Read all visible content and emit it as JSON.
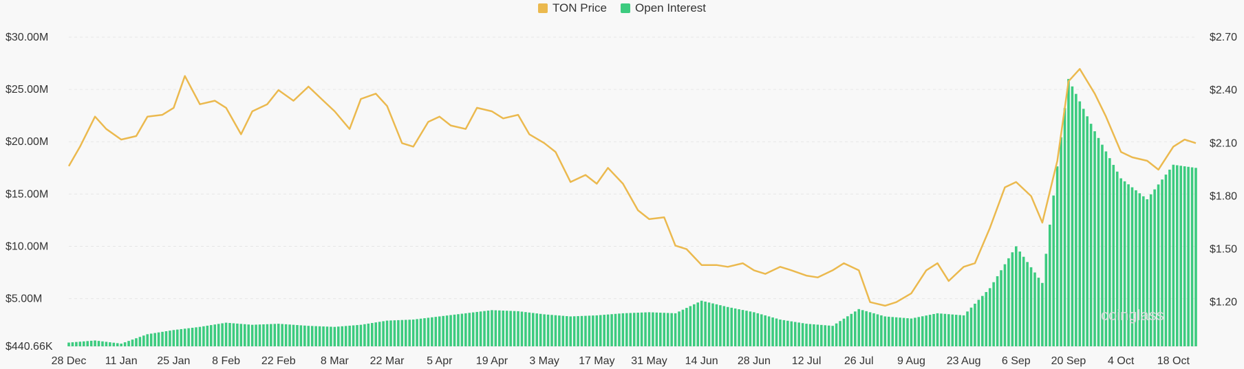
{
  "colors": {
    "price": "#EBB94E",
    "oi": "#3CCB7F",
    "grid": "#e6e6e6",
    "background": "#f8f8f8"
  },
  "watermark": "coinglass",
  "chart_data": {
    "type": "bar+line",
    "legend": [
      "TON Price",
      "Open Interest"
    ],
    "x_ticks": [
      "28 Dec",
      "11 Jan",
      "25 Jan",
      "8 Feb",
      "22 Feb",
      "8 Mar",
      "22 Mar",
      "5 Apr",
      "19 Apr",
      "3 May",
      "17 May",
      "31 May",
      "14 Jun",
      "28 Jun",
      "12 Jul",
      "26 Jul",
      "9 Aug",
      "23 Aug",
      "6 Sep",
      "20 Sep",
      "4 Oct",
      "18 Oct"
    ],
    "y_left_ticks": [
      "$440.66K",
      "$5.00M",
      "$10.00M",
      "$15.00M",
      "$20.00M",
      "$25.00M",
      "$30.00M"
    ],
    "y_right_ticks": [
      "$1.20",
      "$1.50",
      "$1.80",
      "$2.10",
      "$2.40",
      "$2.70"
    ],
    "y_left_range": [
      440660,
      30000000
    ],
    "y_right_range": [
      0.95,
      2.7
    ],
    "x_range": [
      "2023-12-28",
      "2024-10-24"
    ],
    "series": [
      {
        "name": "Open Interest",
        "kind": "bar",
        "axis": "left",
        "points": [
          [
            "2023-12-28",
            0.8
          ],
          [
            "2024-01-04",
            1.0
          ],
          [
            "2024-01-11",
            0.7
          ],
          [
            "2024-01-18",
            1.6
          ],
          [
            "2024-01-25",
            2.0
          ],
          [
            "2024-02-01",
            2.3
          ],
          [
            "2024-02-08",
            2.7
          ],
          [
            "2024-02-15",
            2.5
          ],
          [
            "2024-02-22",
            2.6
          ],
          [
            "2024-03-01",
            2.4
          ],
          [
            "2024-03-08",
            2.3
          ],
          [
            "2024-03-15",
            2.5
          ],
          [
            "2024-03-22",
            2.9
          ],
          [
            "2024-03-29",
            3.0
          ],
          [
            "2024-04-05",
            3.3
          ],
          [
            "2024-04-12",
            3.6
          ],
          [
            "2024-04-19",
            3.9
          ],
          [
            "2024-04-26",
            3.8
          ],
          [
            "2024-05-03",
            3.5
          ],
          [
            "2024-05-10",
            3.3
          ],
          [
            "2024-05-17",
            3.4
          ],
          [
            "2024-05-24",
            3.6
          ],
          [
            "2024-05-31",
            3.7
          ],
          [
            "2024-06-07",
            3.6
          ],
          [
            "2024-06-14",
            4.8
          ],
          [
            "2024-06-21",
            4.2
          ],
          [
            "2024-06-28",
            3.7
          ],
          [
            "2024-07-05",
            3.0
          ],
          [
            "2024-07-12",
            2.6
          ],
          [
            "2024-07-19",
            2.4
          ],
          [
            "2024-07-26",
            4.0
          ],
          [
            "2024-08-02",
            3.3
          ],
          [
            "2024-08-09",
            3.1
          ],
          [
            "2024-08-16",
            3.6
          ],
          [
            "2024-08-23",
            3.4
          ],
          [
            "2024-08-30",
            6.0
          ],
          [
            "2024-09-06",
            10.0
          ],
          [
            "2024-09-13",
            6.5
          ],
          [
            "2024-09-20",
            26.0
          ],
          [
            "2024-09-27",
            21.0
          ],
          [
            "2024-10-04",
            16.5
          ],
          [
            "2024-10-11",
            14.5
          ],
          [
            "2024-10-18",
            17.8
          ],
          [
            "2024-10-24",
            17.5
          ]
        ]
      },
      {
        "name": "TON Price",
        "kind": "line",
        "axis": "right",
        "points": [
          [
            "2023-12-28",
            1.97
          ],
          [
            "2023-12-31",
            2.08
          ],
          [
            "2024-01-04",
            2.25
          ],
          [
            "2024-01-07",
            2.18
          ],
          [
            "2024-01-11",
            2.12
          ],
          [
            "2024-01-15",
            2.14
          ],
          [
            "2024-01-18",
            2.25
          ],
          [
            "2024-01-22",
            2.26
          ],
          [
            "2024-01-25",
            2.3
          ],
          [
            "2024-01-28",
            2.48
          ],
          [
            "2024-02-01",
            2.32
          ],
          [
            "2024-02-05",
            2.34
          ],
          [
            "2024-02-08",
            2.3
          ],
          [
            "2024-02-12",
            2.15
          ],
          [
            "2024-02-15",
            2.28
          ],
          [
            "2024-02-19",
            2.32
          ],
          [
            "2024-02-22",
            2.4
          ],
          [
            "2024-02-26",
            2.34
          ],
          [
            "2024-03-01",
            2.42
          ],
          [
            "2024-03-05",
            2.34
          ],
          [
            "2024-03-08",
            2.28
          ],
          [
            "2024-03-12",
            2.18
          ],
          [
            "2024-03-15",
            2.35
          ],
          [
            "2024-03-19",
            2.38
          ],
          [
            "2024-03-22",
            2.31
          ],
          [
            "2024-03-26",
            2.1
          ],
          [
            "2024-03-29",
            2.08
          ],
          [
            "2024-04-02",
            2.22
          ],
          [
            "2024-04-05",
            2.25
          ],
          [
            "2024-04-08",
            2.2
          ],
          [
            "2024-04-12",
            2.18
          ],
          [
            "2024-04-15",
            2.3
          ],
          [
            "2024-04-19",
            2.28
          ],
          [
            "2024-04-22",
            2.24
          ],
          [
            "2024-04-26",
            2.26
          ],
          [
            "2024-04-29",
            2.15
          ],
          [
            "2024-05-03",
            2.1
          ],
          [
            "2024-05-06",
            2.05
          ],
          [
            "2024-05-10",
            1.88
          ],
          [
            "2024-05-14",
            1.92
          ],
          [
            "2024-05-17",
            1.87
          ],
          [
            "2024-05-20",
            1.96
          ],
          [
            "2024-05-24",
            1.87
          ],
          [
            "2024-05-28",
            1.72
          ],
          [
            "2024-05-31",
            1.67
          ],
          [
            "2024-06-04",
            1.68
          ],
          [
            "2024-06-07",
            1.52
          ],
          [
            "2024-06-10",
            1.5
          ],
          [
            "2024-06-14",
            1.41
          ],
          [
            "2024-06-18",
            1.41
          ],
          [
            "2024-06-21",
            1.4
          ],
          [
            "2024-06-25",
            1.42
          ],
          [
            "2024-06-28",
            1.38
          ],
          [
            "2024-07-01",
            1.36
          ],
          [
            "2024-07-05",
            1.4
          ],
          [
            "2024-07-08",
            1.38
          ],
          [
            "2024-07-12",
            1.35
          ],
          [
            "2024-07-15",
            1.34
          ],
          [
            "2024-07-19",
            1.38
          ],
          [
            "2024-07-22",
            1.42
          ],
          [
            "2024-07-26",
            1.38
          ],
          [
            "2024-07-29",
            1.2
          ],
          [
            "2024-08-02",
            1.18
          ],
          [
            "2024-08-05",
            1.2
          ],
          [
            "2024-08-09",
            1.25
          ],
          [
            "2024-08-13",
            1.38
          ],
          [
            "2024-08-16",
            1.42
          ],
          [
            "2024-08-19",
            1.32
          ],
          [
            "2024-08-23",
            1.4
          ],
          [
            "2024-08-26",
            1.42
          ],
          [
            "2024-08-30",
            1.62
          ],
          [
            "2024-09-03",
            1.85
          ],
          [
            "2024-09-06",
            1.88
          ],
          [
            "2024-09-10",
            1.8
          ],
          [
            "2024-09-13",
            1.65
          ],
          [
            "2024-09-17",
            2.0
          ],
          [
            "2024-09-20",
            2.45
          ],
          [
            "2024-09-23",
            2.52
          ],
          [
            "2024-09-27",
            2.38
          ],
          [
            "2024-09-30",
            2.25
          ],
          [
            "2024-10-04",
            2.05
          ],
          [
            "2024-10-07",
            2.02
          ],
          [
            "2024-10-11",
            2.0
          ],
          [
            "2024-10-14",
            1.95
          ],
          [
            "2024-10-18",
            2.08
          ],
          [
            "2024-10-21",
            2.12
          ],
          [
            "2024-10-24",
            2.1
          ]
        ]
      }
    ]
  }
}
